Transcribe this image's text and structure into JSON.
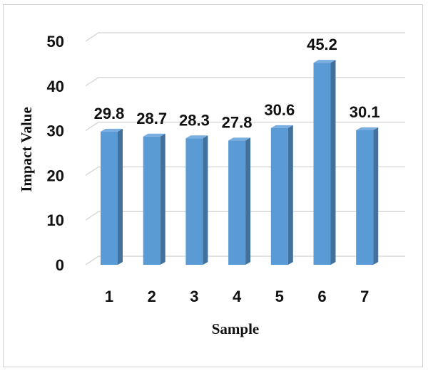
{
  "chart_data": {
    "type": "bar",
    "title": "",
    "xlabel": "Sample",
    "ylabel": "Impact Value",
    "categories": [
      "1",
      "2",
      "3",
      "4",
      "5",
      "6",
      "7"
    ],
    "values": [
      29.8,
      28.7,
      28.3,
      27.8,
      30.6,
      45.2,
      30.1
    ],
    "data_labels": [
      "29.8",
      "28.7",
      "28.3",
      "27.8",
      "30.6",
      "45.2",
      "30.1"
    ],
    "yticks": [
      "0",
      "10",
      "20",
      "30",
      "40",
      "50"
    ],
    "ylim": [
      0,
      50
    ],
    "grid": true,
    "style": "3d-column",
    "colors": {
      "bar_front": "#5b9bd5",
      "bar_side": "#41719c",
      "bar_top": "#7aaee0",
      "grid": "#d9d9d9"
    }
  }
}
